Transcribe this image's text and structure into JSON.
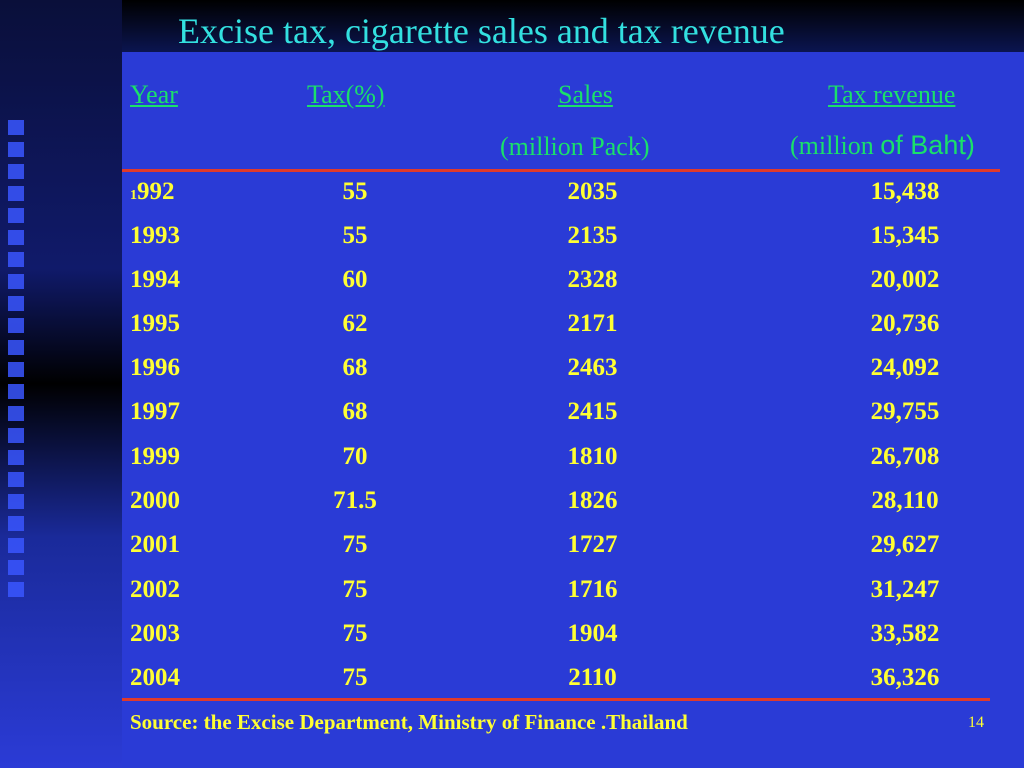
{
  "slide": {
    "title": "Excise tax, cigarette sales and tax revenue",
    "page_number": "14"
  },
  "table": {
    "headers": {
      "year": "Year",
      "tax": "Tax(%)",
      "sales": "Sales",
      "sales_unit": "(million Pack)",
      "revenue": "Tax revenue",
      "revenue_unit_a": "(million ",
      "revenue_unit_b": "of Baht)"
    },
    "rows": [
      {
        "year_prefix": "1",
        "year": "992",
        "tax": "55",
        "sales": "2035",
        "revenue": "15,438"
      },
      {
        "year": "1993",
        "tax": "55",
        "sales": "2135",
        "revenue": "15,345"
      },
      {
        "year": "1994",
        "tax": "60",
        "sales": "2328",
        "revenue": "20,002"
      },
      {
        "year": "1995",
        "tax": "62",
        "sales": "2171",
        "revenue": "20,736"
      },
      {
        "year": "1996",
        "tax": "68",
        "sales": "2463",
        "revenue": "24,092"
      },
      {
        "year": "1997",
        "tax": "68",
        "sales": "2415",
        "revenue": "29,755"
      },
      {
        "year": "1999",
        "tax": "70",
        "sales": "1810",
        "revenue": "26,708"
      },
      {
        "year": "2000",
        "tax": "71.5",
        "sales": "1826",
        "revenue": "28,110"
      },
      {
        "year": "2001",
        "tax": "75",
        "sales": "1727",
        "revenue": "29,627"
      },
      {
        "year": "2002",
        "tax": "75",
        "sales": "1716",
        "revenue": "31,247"
      },
      {
        "year": "2003",
        "tax": "75",
        "sales": "1904",
        "revenue": "33,582"
      },
      {
        "year": "2004",
        "tax": "75",
        "sales": "2110",
        "revenue": "36,326"
      }
    ]
  },
  "footer": {
    "source": "Source: the Excise Department, Ministry of Finance .Thailand"
  },
  "colors": {
    "background": "#2a3bd6",
    "title": "#33e0e0",
    "header": "#1ae06a",
    "values": "#ffff33",
    "rule": "#e03a2a"
  }
}
